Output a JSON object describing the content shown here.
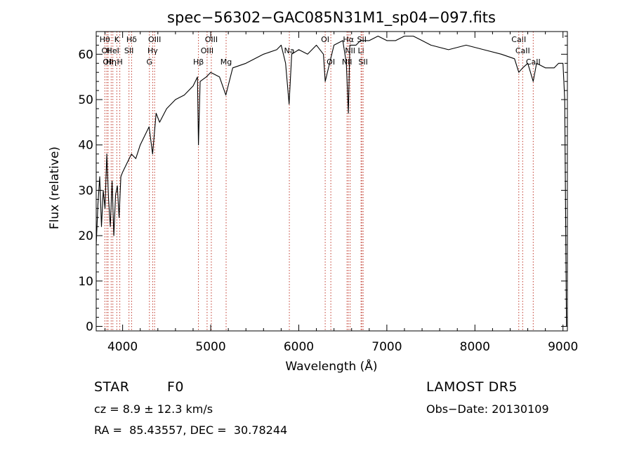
{
  "chart_data": {
    "type": "line",
    "title": "spec−56302−GAC085N31M1_sp04−097.fits",
    "xlabel": "Wavelength (Å)",
    "ylabel": "Flux (relative)",
    "xlim": [
      3700,
      9050
    ],
    "ylim": [
      -1,
      65
    ],
    "xticks": [
      4000,
      5000,
      6000,
      7000,
      8000,
      9000
    ],
    "yticks": [
      0,
      10,
      20,
      30,
      40,
      50,
      60
    ],
    "series": [
      {
        "color": "#000000",
        "x": [
          3700,
          3720,
          3740,
          3760,
          3780,
          3800,
          3820,
          3840,
          3860,
          3880,
          3900,
          3920,
          3940,
          3960,
          3980,
          4000,
          4050,
          4100,
          4150,
          4200,
          4250,
          4300,
          4340,
          4380,
          4420,
          4500,
          4600,
          4700,
          4800,
          4850,
          4861,
          4880,
          4950,
          5000,
          5100,
          5172,
          5250,
          5400,
          5600,
          5750,
          5800,
          5850,
          5890,
          5920,
          6000,
          6100,
          6200,
          6280,
          6300,
          6400,
          6500,
          6540,
          6563,
          6580,
          6650,
          6700,
          6800,
          6900,
          7000,
          7100,
          7200,
          7300,
          7400,
          7500,
          7700,
          7900,
          8100,
          8300,
          8450,
          8498,
          8542,
          8600,
          8662,
          8700,
          8800,
          8900,
          8950,
          9000,
          9020,
          9040
        ],
        "y": [
          18,
          27,
          33,
          22,
          30,
          26,
          38,
          28,
          22,
          32,
          20,
          29,
          31,
          24,
          33,
          34,
          36,
          38,
          37,
          40,
          42,
          44,
          38,
          47,
          45,
          48,
          50,
          51,
          53,
          55,
          40,
          54,
          55,
          56,
          55,
          51,
          57,
          58,
          60,
          61,
          62,
          58,
          49,
          60,
          61,
          60,
          62,
          60,
          54,
          62,
          63,
          58,
          47,
          62,
          62,
          63,
          63,
          64,
          63,
          63,
          64,
          64,
          63,
          62,
          61,
          62,
          61,
          60,
          59,
          56,
          57,
          58,
          54,
          58,
          57,
          57,
          58,
          58,
          50,
          0
        ]
      }
    ],
    "lines": [
      {
        "wl": 3798,
        "label": "Hθ",
        "row": 0
      },
      {
        "wl": 3820,
        "label": "OII",
        "row": 1
      },
      {
        "wl": 3835,
        "label": "OII",
        "row": 2
      },
      {
        "wl": 3870,
        "label": "Hη",
        "row": 2
      },
      {
        "wl": 3889,
        "label": "HeI",
        "row": 1
      },
      {
        "wl": 3934,
        "label": "K",
        "row": 0
      },
      {
        "wl": 3968,
        "label": "H",
        "row": 2
      },
      {
        "wl": 4072,
        "label": "SII",
        "row": 1
      },
      {
        "wl": 4102,
        "label": "Hδ",
        "row": 0
      },
      {
        "wl": 4304,
        "label": "G",
        "row": 2
      },
      {
        "wl": 4341,
        "label": "Hγ",
        "row": 1
      },
      {
        "wl": 4363,
        "label": "OIII",
        "row": 0
      },
      {
        "wl": 4861,
        "label": "Hβ",
        "row": 2
      },
      {
        "wl": 4959,
        "label": "OIII",
        "row": 1
      },
      {
        "wl": 5007,
        "label": "OIII",
        "row": 0
      },
      {
        "wl": 5175,
        "label": "Mg",
        "row": 2
      },
      {
        "wl": 5893,
        "label": "Na",
        "row": 1
      },
      {
        "wl": 6300,
        "label": "OI",
        "row": 0
      },
      {
        "wl": 6364,
        "label": "OI",
        "row": 2
      },
      {
        "wl": 6548,
        "label": "NII",
        "row": 2
      },
      {
        "wl": 6563,
        "label": "Hα",
        "row": 0
      },
      {
        "wl": 6583,
        "label": "NII",
        "row": 1
      },
      {
        "wl": 6707,
        "label": "Li",
        "row": 1
      },
      {
        "wl": 6716,
        "label": "SII",
        "row": 0
      },
      {
        "wl": 6731,
        "label": "SII",
        "row": 2
      },
      {
        "wl": 8498,
        "label": "CaII",
        "row": 0
      },
      {
        "wl": 8542,
        "label": "CaII",
        "row": 1
      },
      {
        "wl": 8662,
        "label": "CaII",
        "row": 2
      }
    ]
  },
  "info": {
    "object_class": "STAR",
    "subclass": "F0",
    "survey": "LAMOST DR5",
    "cz": "cz = 8.9 ± 12.3 km/s",
    "obs_date": "Obs−Date: 20130109",
    "radec": "RA =  85.43557, DEC =  30.78244"
  }
}
